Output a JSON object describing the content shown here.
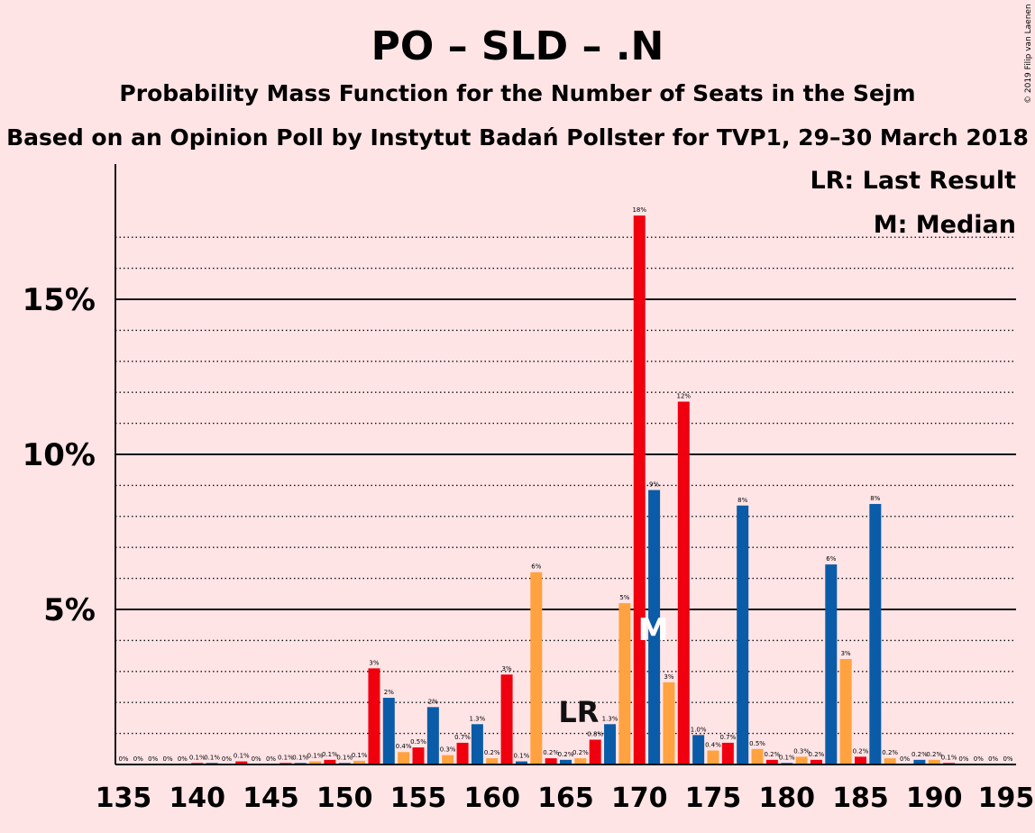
{
  "chart_data": {
    "type": "bar",
    "title": "PO – SLD – .N",
    "subtitle": "Probability Mass Function for the Number of Seats in the Sejm",
    "subtitle2": "Based on an Opinion Poll by Instytut Badań Pollster for TVP1, 29–30 March 2018",
    "copyright": "© 2019 Filip van Laenen",
    "legend": [
      {
        "key": "lr",
        "text": "LR: Last Result"
      },
      {
        "key": "median",
        "text": "M: Median"
      }
    ],
    "legend_position": "top-right",
    "xlim": [
      135,
      195
    ],
    "ylim": [
      0,
      19.2
    ],
    "x_ticks": [
      135,
      140,
      145,
      150,
      155,
      160,
      165,
      170,
      175,
      180,
      185,
      190,
      195
    ],
    "y_ticks": [
      {
        "value": 5,
        "label": "5%"
      },
      {
        "value": 10,
        "label": "10%"
      },
      {
        "value": 15,
        "label": "15%"
      }
    ],
    "minor_grid": [
      1,
      2,
      3,
      4,
      6,
      7,
      8,
      9,
      11,
      12,
      13,
      14,
      16,
      17
    ],
    "colors": {
      "blue": "#0A5CA8",
      "orange": "#FFA23F",
      "red": "#F0000F",
      "background": "#FFE4E6"
    },
    "color_cycle": [
      "blue",
      "orange",
      "red"
    ],
    "last_result": {
      "seat": 166,
      "label": "LR"
    },
    "median": {
      "seat": 171,
      "label": "M"
    },
    "bars": [
      {
        "x": 135,
        "value": 0.0,
        "label": "0%"
      },
      {
        "x": 136,
        "value": 0.0,
        "label": "0%"
      },
      {
        "x": 137,
        "value": 0.0,
        "label": "0%"
      },
      {
        "x": 138,
        "value": 0.0,
        "label": "0%"
      },
      {
        "x": 139,
        "value": 0.0,
        "label": "0%"
      },
      {
        "x": 140,
        "value": 0.05,
        "label": "0.1%"
      },
      {
        "x": 141,
        "value": 0.05,
        "label": "0.1%"
      },
      {
        "x": 142,
        "value": 0.0,
        "label": "0%"
      },
      {
        "x": 143,
        "value": 0.1,
        "label": "0.1%"
      },
      {
        "x": 144,
        "value": 0.0,
        "label": "0%"
      },
      {
        "x": 145,
        "value": 0.0,
        "label": "0%"
      },
      {
        "x": 146,
        "value": 0.05,
        "label": "0.1%"
      },
      {
        "x": 147,
        "value": 0.05,
        "label": "0.1%"
      },
      {
        "x": 148,
        "value": 0.1,
        "label": "0.1%"
      },
      {
        "x": 149,
        "value": 0.15,
        "label": "0.1%"
      },
      {
        "x": 150,
        "value": 0.05,
        "label": "0.1%"
      },
      {
        "x": 151,
        "value": 0.12,
        "label": "0.1%"
      },
      {
        "x": 152,
        "value": 3.1,
        "label": "3%"
      },
      {
        "x": 153,
        "value": 2.15,
        "label": "2%"
      },
      {
        "x": 154,
        "value": 0.4,
        "label": "0.4%"
      },
      {
        "x": 155,
        "value": 0.55,
        "label": "0.5%"
      },
      {
        "x": 156,
        "value": 1.85,
        "label": "2%"
      },
      {
        "x": 157,
        "value": 0.3,
        "label": "0.3%"
      },
      {
        "x": 158,
        "value": 0.7,
        "label": "0.7%"
      },
      {
        "x": 159,
        "value": 1.3,
        "label": "1.3%"
      },
      {
        "x": 160,
        "value": 0.2,
        "label": "0.2%"
      },
      {
        "x": 161,
        "value": 2.9,
        "label": "3%"
      },
      {
        "x": 162,
        "value": 0.1,
        "label": "0.1%"
      },
      {
        "x": 163,
        "value": 6.2,
        "label": "6%"
      },
      {
        "x": 164,
        "value": 0.2,
        "label": "0.2%"
      },
      {
        "x": 165,
        "value": 0.15,
        "label": "0.2%"
      },
      {
        "x": 166,
        "value": 0.2,
        "label": "0.2%"
      },
      {
        "x": 167,
        "value": 0.8,
        "label": "0.8%"
      },
      {
        "x": 168,
        "value": 1.3,
        "label": "1.3%"
      },
      {
        "x": 169,
        "value": 5.2,
        "label": "5%"
      },
      {
        "x": 170,
        "value": 17.7,
        "label": "18%"
      },
      {
        "x": 171,
        "value": 8.85,
        "label": "9%"
      },
      {
        "x": 172,
        "value": 2.65,
        "label": "3%"
      },
      {
        "x": 173,
        "value": 11.7,
        "label": "12%"
      },
      {
        "x": 174,
        "value": 0.95,
        "label": "1.0%"
      },
      {
        "x": 175,
        "value": 0.45,
        "label": "0.4%"
      },
      {
        "x": 176,
        "value": 0.7,
        "label": "0.7%"
      },
      {
        "x": 177,
        "value": 8.35,
        "label": "8%"
      },
      {
        "x": 178,
        "value": 0.5,
        "label": "0.5%"
      },
      {
        "x": 179,
        "value": 0.15,
        "label": "0.2%"
      },
      {
        "x": 180,
        "value": 0.05,
        "label": "0.1%"
      },
      {
        "x": 181,
        "value": 0.25,
        "label": "0.3%"
      },
      {
        "x": 182,
        "value": 0.15,
        "label": "0.2%"
      },
      {
        "x": 183,
        "value": 6.45,
        "label": "6%"
      },
      {
        "x": 184,
        "value": 3.4,
        "label": "3%"
      },
      {
        "x": 185,
        "value": 0.25,
        "label": "0.2%"
      },
      {
        "x": 186,
        "value": 8.4,
        "label": "8%"
      },
      {
        "x": 187,
        "value": 0.2,
        "label": "0.2%"
      },
      {
        "x": 188,
        "value": 0.0,
        "label": "0%"
      },
      {
        "x": 189,
        "value": 0.15,
        "label": "0.2%"
      },
      {
        "x": 190,
        "value": 0.15,
        "label": "0.2%"
      },
      {
        "x": 191,
        "value": 0.05,
        "label": "0.1%"
      },
      {
        "x": 192,
        "value": 0.0,
        "label": "0%"
      },
      {
        "x": 193,
        "value": 0.0,
        "label": "0%"
      },
      {
        "x": 194,
        "value": 0.0,
        "label": "0%"
      },
      {
        "x": 195,
        "value": 0.0,
        "label": "0%"
      }
    ]
  }
}
